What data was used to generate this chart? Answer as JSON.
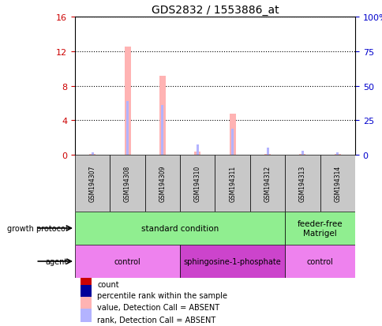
{
  "title": "GDS2832 / 1553886_at",
  "samples": [
    "GSM194307",
    "GSM194308",
    "GSM194309",
    "GSM194310",
    "GSM194311",
    "GSM194312",
    "GSM194313",
    "GSM194314"
  ],
  "pink_values": [
    0.05,
    12.5,
    9.1,
    0.4,
    4.8,
    0.05,
    0.05,
    0.05
  ],
  "blue_values": [
    0.3,
    6.2,
    5.8,
    1.2,
    3.0,
    0.8,
    0.5,
    0.3
  ],
  "pink_color": "#ffb3b3",
  "blue_color": "#b3b3ff",
  "left_yticks": [
    0,
    4,
    8,
    12,
    16
  ],
  "right_yticks": [
    0,
    25,
    50,
    75,
    100
  ],
  "ylim_left": [
    0,
    16
  ],
  "ylim_right": [
    0,
    100
  ],
  "growth_protocol_label": "growth protocol",
  "agent_label": "agent",
  "growth_protocol_groups": [
    {
      "label": "standard condition",
      "start": 0,
      "end": 6,
      "color": "#90ee90"
    },
    {
      "label": "feeder-free\nMatrigel",
      "start": 6,
      "end": 8,
      "color": "#90ee90"
    }
  ],
  "agent_groups": [
    {
      "label": "control",
      "start": 0,
      "end": 3,
      "color": "#ee82ee"
    },
    {
      "label": "sphingosine-1-phosphate",
      "start": 3,
      "end": 6,
      "color": "#cc44cc"
    },
    {
      "label": "control",
      "start": 6,
      "end": 8,
      "color": "#ee82ee"
    }
  ],
  "legend_items": [
    {
      "label": "count",
      "color": "#cc0000"
    },
    {
      "label": "percentile rank within the sample",
      "color": "#000099"
    },
    {
      "label": "value, Detection Call = ABSENT",
      "color": "#ffb3b3"
    },
    {
      "label": "rank, Detection Call = ABSENT",
      "color": "#b3b3ff"
    }
  ],
  "pink_bar_width": 0.18,
  "blue_bar_width": 0.07,
  "background_color": "#ffffff",
  "sample_box_color": "#c8c8c8",
  "left_tick_color": "#cc0000",
  "right_tick_color": "#0000cc"
}
